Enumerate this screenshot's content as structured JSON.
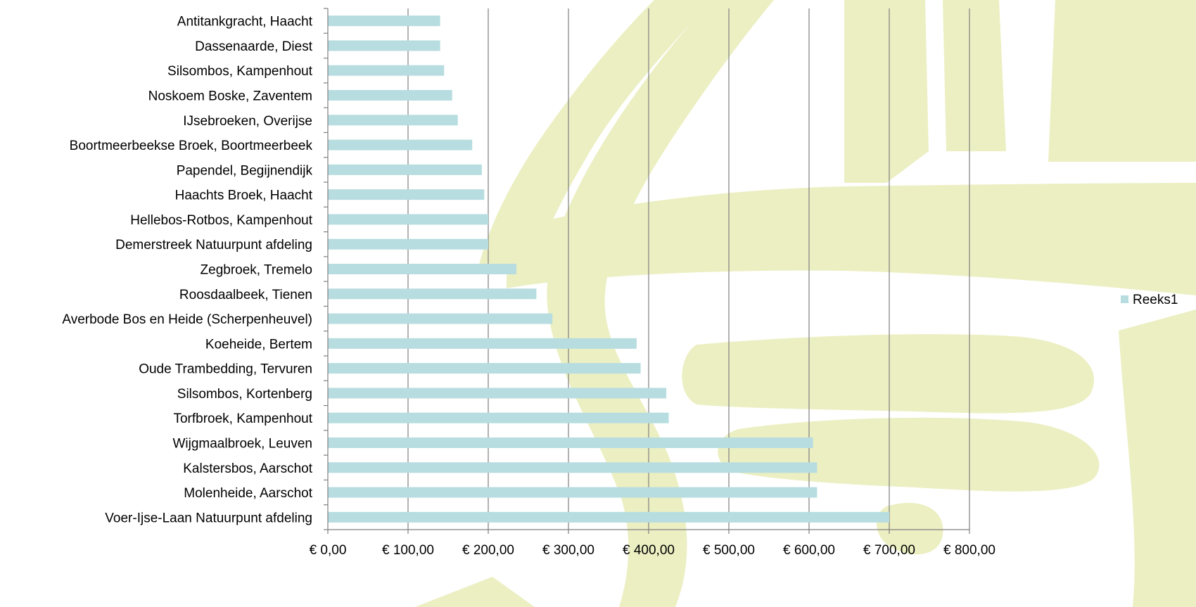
{
  "chart_data": {
    "type": "bar",
    "orientation": "horizontal",
    "categories": [
      "Antitankgracht, Haacht",
      "Dassenaarde, Diest",
      "Silsombos, Kampenhout",
      "Noskoem Boske, Zaventem",
      "IJsebroeken, Overijse",
      "Boortmeerbeekse Broek, Boortmeerbeek",
      "Papendel, Begijnendijk",
      "Haachts Broek, Haacht",
      "Hellebos-Rotbos, Kampenhout",
      "Demerstreek Natuurpunt afdeling",
      "Zegbroek, Tremelo",
      "Roosdaalbeek, Tienen",
      "Averbode Bos en Heide (Scherpenheuvel)",
      "Koeheide, Bertem",
      "Oude Trambedding, Tervuren",
      "Silsombos, Kortenberg",
      "Torfbroek, Kampenhout",
      "Wijgmaalbroek, Leuven",
      "Kalstersbos, Aarschot",
      "Molenheide, Aarschot",
      "Voer-Ijse-Laan Natuurpunt afdeling"
    ],
    "series": [
      {
        "name": "Reeks1",
        "color": "#b7dde0",
        "values": [
          140,
          140,
          145,
          155,
          162,
          180,
          192,
          195,
          200,
          200,
          235,
          260,
          280,
          385,
          390,
          422,
          425,
          605,
          610,
          610,
          700
        ]
      }
    ],
    "xlim": [
      0,
      800
    ],
    "xticks": [
      0,
      100,
      200,
      300,
      400,
      500,
      600,
      700,
      800
    ],
    "xtick_labels": [
      "€ 0,00",
      "€ 100,00",
      "€ 200,00",
      "€ 300,00",
      "€ 400,00",
      "€ 500,00",
      "€ 600,00",
      "€ 700,00",
      "€ 800,00"
    ],
    "grid": "vertical",
    "legend": {
      "position": "right",
      "entries": [
        "Reeks1"
      ]
    },
    "title": "",
    "xlabel": "",
    "ylabel": "",
    "background_watermark_color": "#ecefc2"
  }
}
